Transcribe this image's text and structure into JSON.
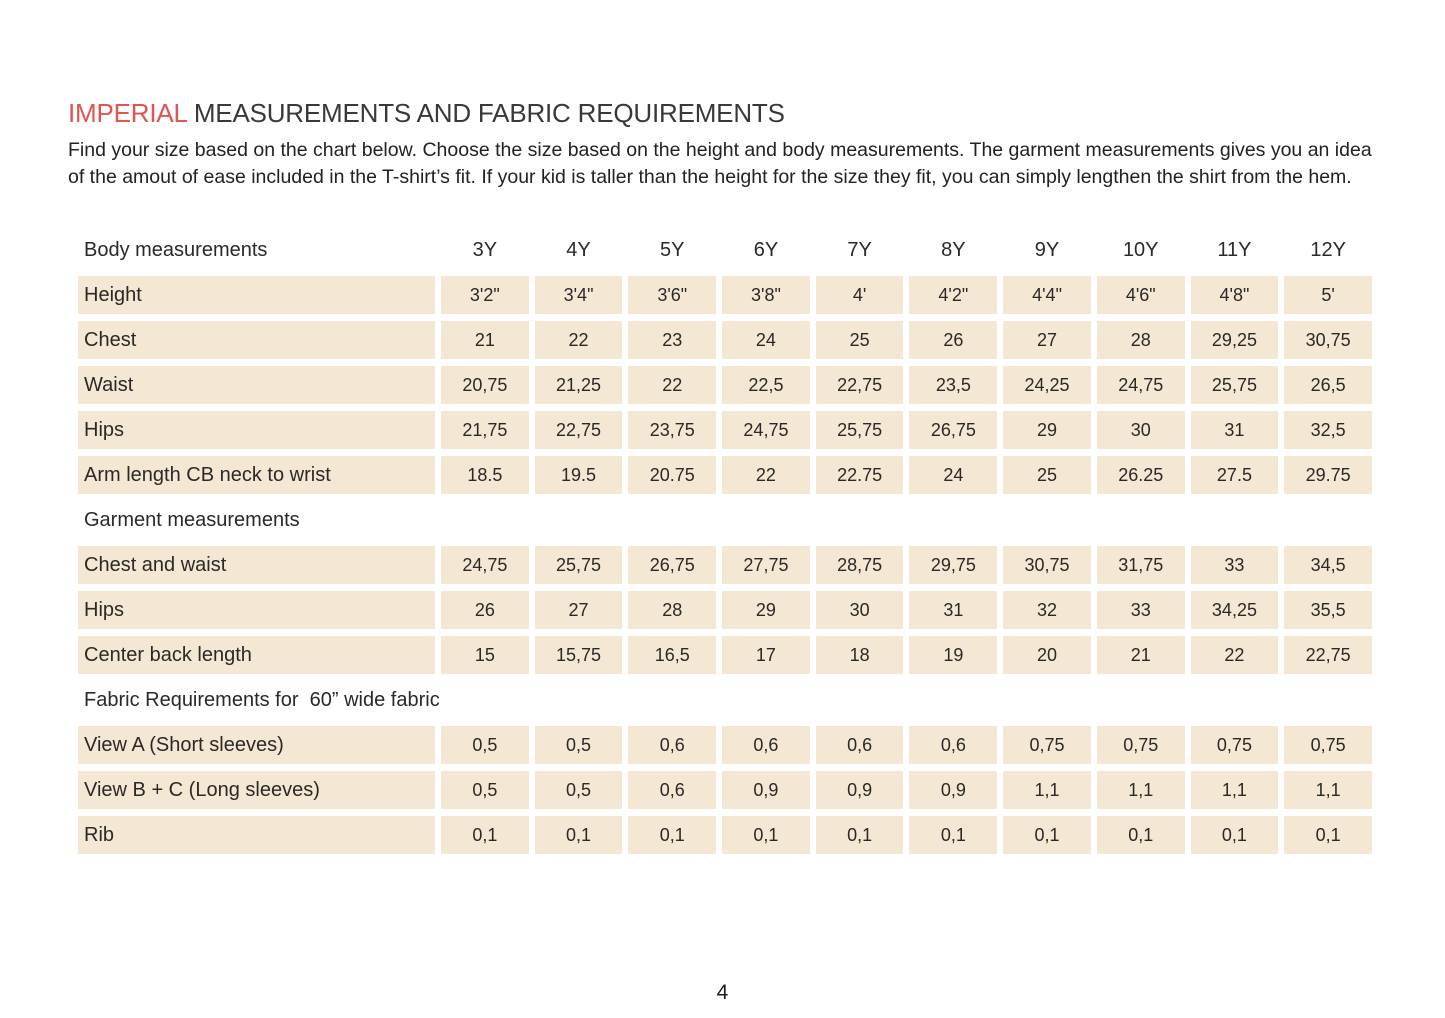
{
  "header": {
    "title_accent": "IMPERIAL",
    "title_rest": "MEASUREMENTS AND FABRIC REQUIREMENTS",
    "intro": "Find your size based on the chart below. Choose the size based on the height and body measurements. The garment measurements gives you an idea of the amout of ease included in the T-shirt’s fit. If your kid is taller than the height for the size they fit, you can simply lengthen the shirt from the hem."
  },
  "footer": {
    "page_number": "4"
  },
  "colors": {
    "accent_red": "#e05452",
    "cell_background": "#f4e7d4",
    "text": "#2b2927",
    "page_background": "#ffffff"
  },
  "chart_data": {
    "type": "table",
    "size_columns": [
      "3Y",
      "4Y",
      "5Y",
      "6Y",
      "7Y",
      "8Y",
      "9Y",
      "10Y",
      "11Y",
      "12Y"
    ],
    "sections": [
      {
        "header": "Body measurements",
        "rows": [
          {
            "label": "Height",
            "values": [
              "3'2\"",
              "3'4\"",
              "3'6\"",
              "3'8\"",
              "4'",
              "4'2\"",
              "4'4\"",
              "4'6\"",
              "4'8\"",
              "5'"
            ]
          },
          {
            "label": "Chest",
            "values": [
              "21",
              "22",
              "23",
              "24",
              "25",
              "26",
              "27",
              "28",
              "29,25",
              "30,75"
            ]
          },
          {
            "label": "Waist",
            "values": [
              "20,75",
              "21,25",
              "22",
              "22,5",
              "22,75",
              "23,5",
              "24,25",
              "24,75",
              "25,75",
              "26,5"
            ]
          },
          {
            "label": "Hips",
            "values": [
              "21,75",
              "22,75",
              "23,75",
              "24,75",
              "25,75",
              "26,75",
              "29",
              "30",
              "31",
              "32,5"
            ]
          },
          {
            "label": "Arm length CB neck to wrist",
            "values": [
              "18.5",
              "19.5",
              "20.75",
              "22",
              "22.75",
              "24",
              "25",
              "26.25",
              "27.5",
              "29.75"
            ]
          }
        ]
      },
      {
        "header": "Garment measurements",
        "rows": [
          {
            "label": "Chest and waist",
            "values": [
              "24,75",
              "25,75",
              "26,75",
              "27,75",
              "28,75",
              "29,75",
              "30,75",
              "31,75",
              "33",
              "34,5"
            ]
          },
          {
            "label": "Hips",
            "values": [
              "26",
              "27",
              "28",
              "29",
              "30",
              "31",
              "32",
              "33",
              "34,25",
              "35,5"
            ]
          },
          {
            "label": "Center back length",
            "values": [
              "15",
              "15,75",
              "16,5",
              "17",
              "18",
              "19",
              "20",
              "21",
              "22",
              "22,75"
            ]
          }
        ]
      },
      {
        "header": "Fabric Requirements for  60” wide fabric",
        "rows": [
          {
            "label": "View A (Short sleeves)",
            "values": [
              "0,5",
              "0,5",
              "0,6",
              "0,6",
              "0,6",
              "0,6",
              "0,75",
              "0,75",
              "0,75",
              "0,75"
            ]
          },
          {
            "label": "View B + C (Long sleeves)",
            "values": [
              "0,5",
              "0,5",
              "0,6",
              "0,9",
              "0,9",
              "0,9",
              "1,1",
              "1,1",
              "1,1",
              "1,1"
            ]
          },
          {
            "label": "Rib",
            "values": [
              "0,1",
              "0,1",
              "0,1",
              "0,1",
              "0,1",
              "0,1",
              "0,1",
              "0,1",
              "0,1",
              "0,1"
            ]
          }
        ]
      }
    ]
  }
}
